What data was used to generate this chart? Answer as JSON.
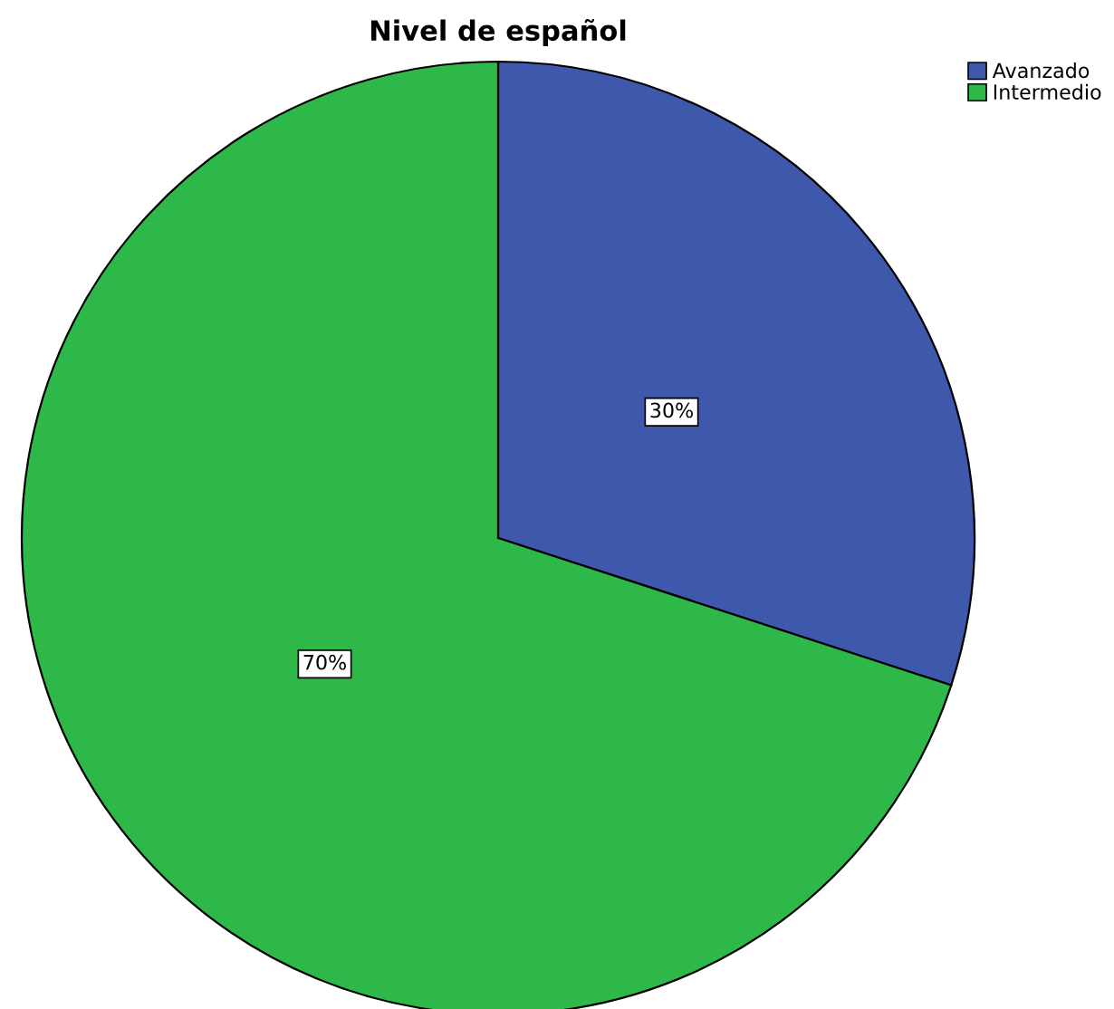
{
  "chart_data": {
    "type": "pie",
    "title": "Nivel de español",
    "categories": [
      "Avanzado",
      "Intermedio"
    ],
    "values": [
      30,
      70
    ],
    "colors": [
      "#3e58ac",
      "#2eb84a"
    ],
    "value_labels": [
      "30%",
      "70%"
    ],
    "legend": "top right"
  }
}
